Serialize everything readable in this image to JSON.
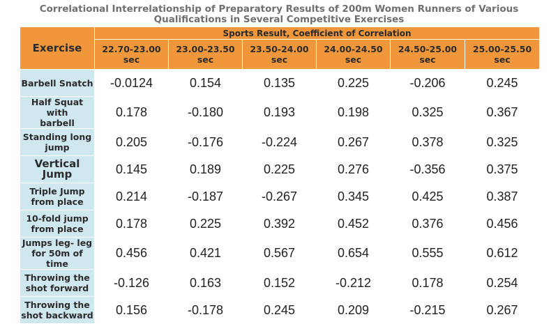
{
  "title_line1": "Correlational Interrelationship of Preparatory Results of 200m Women Runners of Various",
  "title_line2": "Qualifications in Several Competitive Exercises",
  "header": {
    "exercise": "Exercise",
    "span": "Sports Result, Coefficient of Correlation",
    "ranges": [
      [
        "22.70-23.00",
        "sec"
      ],
      [
        "23.00-23.50",
        "sec"
      ],
      [
        "23.50-24.00",
        "sec"
      ],
      [
        "24.00-24.50",
        "sec"
      ],
      [
        "24.50-25.00",
        "sec"
      ],
      [
        "25.00-25.50",
        "sec"
      ]
    ]
  },
  "rows": [
    {
      "exercise": [
        "Barbell Snatch"
      ],
      "values": [
        "-0.0124",
        "0.154",
        "0.135",
        "0.225",
        "-0.206",
        "0.245"
      ]
    },
    {
      "exercise": [
        "Half Squat with",
        "barbell"
      ],
      "values": [
        "0.178",
        "-0.180",
        "0.193",
        "0.198",
        "0.325",
        "0.367"
      ]
    },
    {
      "exercise": [
        "Standing long",
        "jump"
      ],
      "values": [
        "0.205",
        "-0.176",
        "-0.224",
        "0.267",
        "0.378",
        "0.325"
      ]
    },
    {
      "exercise": [
        "Vertical Jump"
      ],
      "values": [
        "0.145",
        "0.189",
        "0.225",
        "0.276",
        "-0.356",
        "0.375"
      ]
    },
    {
      "exercise": [
        "Triple Jump",
        "from place"
      ],
      "values": [
        "0.214",
        "-0.187",
        "-0.267",
        "0.345",
        "0.425",
        "0.387"
      ]
    },
    {
      "exercise": [
        "10-fold jump",
        "from place"
      ],
      "values": [
        "0.178",
        "0.225",
        "0.392",
        "0.452",
        "0.376",
        "0.456"
      ]
    },
    {
      "exercise": [
        "Jumps leg- leg",
        "for 50m of time"
      ],
      "values": [
        "0.456",
        "0.421",
        "0.567",
        "0.654",
        "0.555",
        "0.612"
      ]
    },
    {
      "exercise": [
        "Throwing the",
        "shot forward"
      ],
      "values": [
        "-0.126",
        "0.163",
        "0.152",
        "-0.212",
        "0.178",
        "0.254"
      ]
    },
    {
      "exercise": [
        "Throwing the",
        "shot backward"
      ],
      "values": [
        "0.156",
        "-0.178",
        "0.245",
        "0.209",
        "-0.215",
        "0.267"
      ]
    }
  ],
  "colors": {
    "header_bg": "#f0973b",
    "exercise_col_bg": "#cfe7ef",
    "title_color": "#6f6f6f"
  }
}
